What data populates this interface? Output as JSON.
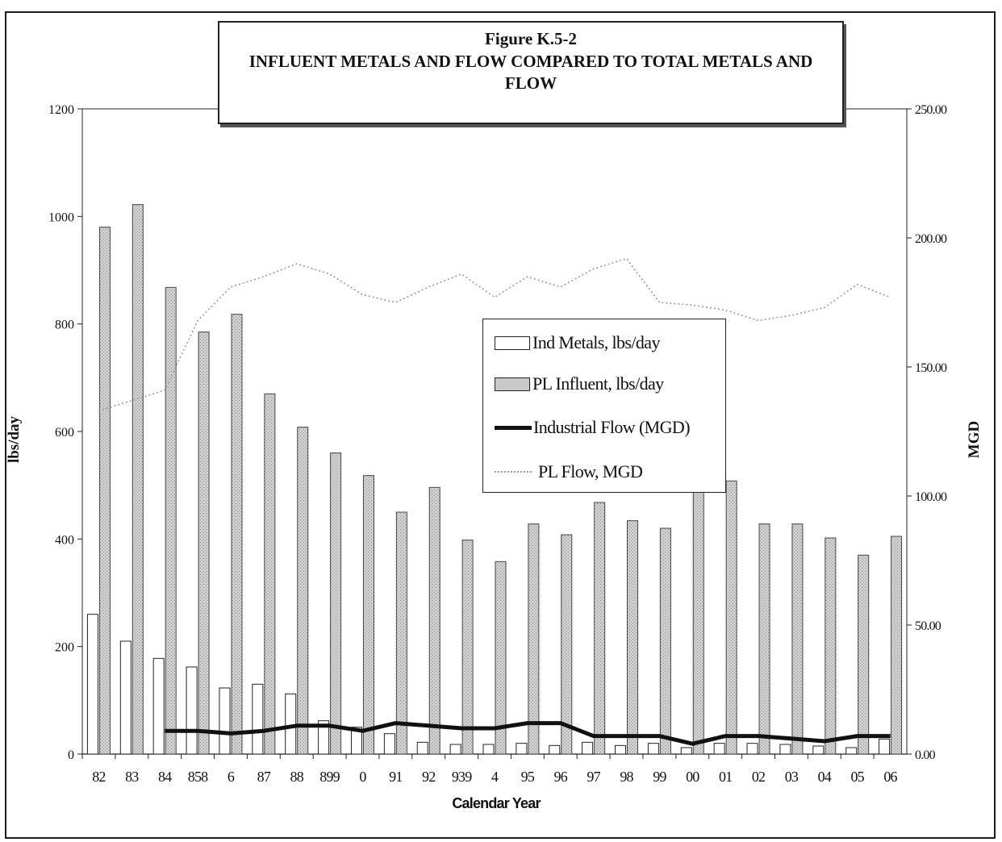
{
  "title": {
    "line1": "Figure K.5-2",
    "line2": "INFLUENT METALS AND FLOW COMPARED TO TOTAL METALS AND FLOW"
  },
  "chart_data": {
    "type": "bar",
    "xlabel": "Calendar Year",
    "ylabel": "lbs/day",
    "y2label": "MGD",
    "ylim": [
      0,
      1200
    ],
    "y2lim": [
      0,
      250
    ],
    "yticks": [
      "0",
      "200",
      "400",
      "600",
      "800",
      "1000",
      "1200"
    ],
    "y2ticks": [
      "0.00",
      "50.00",
      "100.00",
      "150.00",
      "200.00",
      "250.00"
    ],
    "categories": [
      "82",
      "83",
      "84",
      "85",
      "86",
      "87",
      "88",
      "89",
      "90",
      "91",
      "92",
      "93",
      "94",
      "95",
      "96",
      "97",
      "98",
      "99",
      "00",
      "01",
      "02",
      "03",
      "04",
      "05",
      "06"
    ],
    "tick_labels": [
      "82",
      "83",
      "84",
      "858",
      "6",
      "87",
      "88",
      "899",
      "0",
      "91",
      "92",
      "939",
      "4",
      "95",
      "96",
      "97",
      "98",
      "99",
      "00",
      "01",
      "02",
      "03",
      "04",
      "05",
      "06"
    ],
    "series": [
      {
        "name": "Ind Metals, lbs/day",
        "kind": "bar",
        "axis": "left",
        "color": "#ffffff",
        "values": [
          260,
          210,
          178,
          162,
          123,
          130,
          112,
          62,
          50,
          38,
          22,
          18,
          18,
          20,
          16,
          22,
          16,
          20,
          12,
          20,
          20,
          18,
          15,
          12,
          28
        ]
      },
      {
        "name": "PL Influent, lbs/day",
        "kind": "bar",
        "axis": "left",
        "color": "#c9c9c9",
        "values": [
          980,
          1022,
          868,
          785,
          818,
          670,
          608,
          560,
          518,
          450,
          496,
          398,
          358,
          428,
          408,
          468,
          434,
          420,
          488,
          508,
          428,
          428,
          402,
          370,
          405
        ]
      },
      {
        "name": "Industrial Flow (MGD)",
        "kind": "line",
        "axis": "right",
        "color": "#111111",
        "values": [
          null,
          null,
          9,
          9,
          8,
          9,
          11,
          11,
          9,
          12,
          11,
          10,
          10,
          12,
          12,
          7,
          7,
          7,
          4,
          7,
          7,
          6,
          5,
          7,
          7
        ]
      },
      {
        "name": "PL Flow, MGD",
        "kind": "line",
        "axis": "right",
        "color": "#9a9a9a",
        "values": [
          133,
          137,
          141,
          168,
          181,
          185,
          190,
          186,
          178,
          175,
          181,
          186,
          177,
          185,
          181,
          188,
          192,
          175,
          174,
          172,
          168,
          170,
          173,
          182,
          177
        ]
      }
    ],
    "legend": "center-right"
  }
}
